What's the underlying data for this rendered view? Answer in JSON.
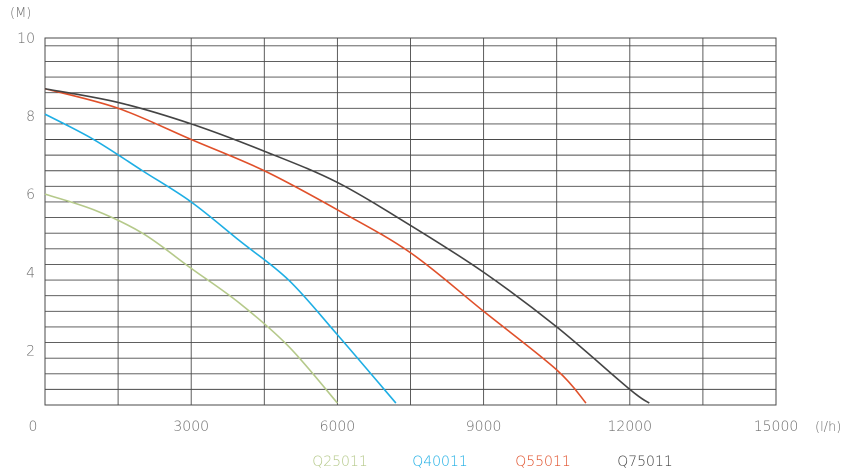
{
  "chart_data": {
    "type": "line",
    "title": "",
    "xlabel": "(l/h)",
    "ylabel": "(M)",
    "xlim": [
      0,
      15000
    ],
    "ylim": [
      0,
      10
    ],
    "x_ticks": [
      "0",
      "3000",
      "6000",
      "9000",
      "12000",
      "15000"
    ],
    "y_ticks": [
      "2",
      "4",
      "6",
      "8",
      "10"
    ],
    "grid": true,
    "legend_position": "bottom",
    "series": [
      {
        "name": "Q25011",
        "color": "#b5c98a",
        "points": [
          [
            0,
            6.0
          ],
          [
            1000,
            5.6
          ],
          [
            2000,
            5.0
          ],
          [
            3000,
            4.1
          ],
          [
            4000,
            3.2
          ],
          [
            5000,
            2.1
          ],
          [
            6000,
            0.65
          ]
        ]
      },
      {
        "name": "Q40011",
        "color": "#1eaee4",
        "points": [
          [
            0,
            8.05
          ],
          [
            1000,
            7.4
          ],
          [
            2000,
            6.6
          ],
          [
            3000,
            5.8
          ],
          [
            4000,
            4.8
          ],
          [
            5000,
            3.8
          ],
          [
            6000,
            2.4
          ],
          [
            7200,
            0.65
          ]
        ]
      },
      {
        "name": "Q55011",
        "color": "#e0502a",
        "points": [
          [
            0,
            8.7
          ],
          [
            1500,
            8.2
          ],
          [
            3000,
            7.4
          ],
          [
            4500,
            6.6
          ],
          [
            6000,
            5.6
          ],
          [
            7500,
            4.5
          ],
          [
            9000,
            3.0
          ],
          [
            10500,
            1.5
          ],
          [
            11100,
            0.65
          ]
        ]
      },
      {
        "name": "Q75011",
        "color": "#444444",
        "points": [
          [
            0,
            8.7
          ],
          [
            1500,
            8.35
          ],
          [
            3000,
            7.8
          ],
          [
            4500,
            7.1
          ],
          [
            6000,
            6.3
          ],
          [
            7500,
            5.2
          ],
          [
            9000,
            4.0
          ],
          [
            10500,
            2.6
          ],
          [
            12000,
            1.0
          ],
          [
            12400,
            0.65
          ]
        ]
      }
    ]
  }
}
